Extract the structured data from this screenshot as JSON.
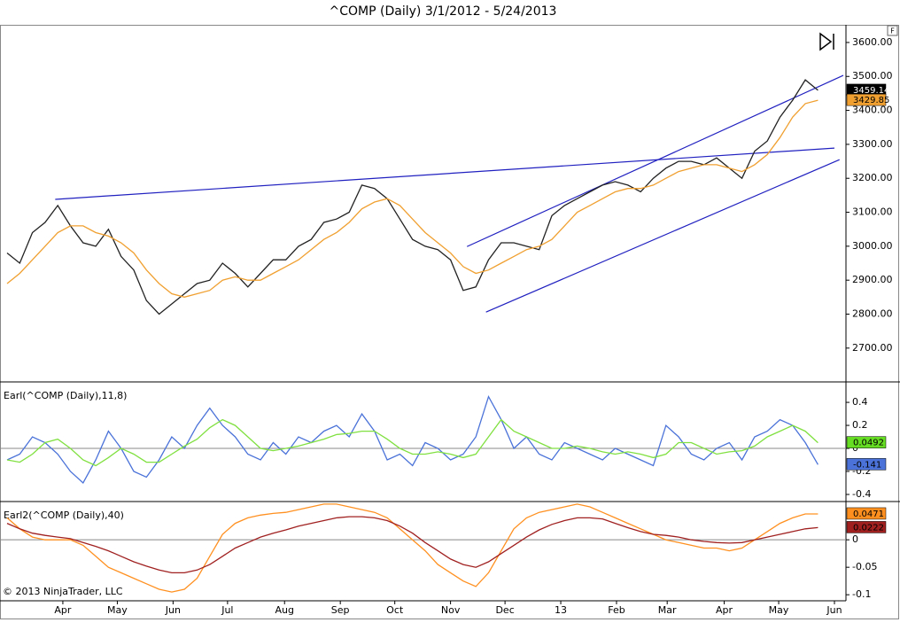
{
  "chart_data": [
    {
      "type": "line",
      "title": "^COMP (Daily)  3/1/2012 - 5/24/2013",
      "xlim": [
        0,
        66
      ],
      "ylim": [
        2603,
        3652
      ],
      "yticks": [
        {
          "value": 2700,
          "label": "2700.00"
        },
        {
          "value": 2800,
          "label": "2800.00"
        },
        {
          "value": 2900,
          "label": "2900.00"
        },
        {
          "value": 3000,
          "label": "3000.00"
        },
        {
          "value": 3100,
          "label": "3100.00"
        },
        {
          "value": 3200,
          "label": "3200.00"
        },
        {
          "value": 3300,
          "label": "3300.00"
        },
        {
          "value": 3400,
          "label": "3400.00"
        },
        {
          "value": 3500,
          "label": "3500.00"
        },
        {
          "value": 3600,
          "label": "3600.00"
        }
      ],
      "last_value_label": true,
      "series": [
        {
          "color": "#222222",
          "label_color": "#000000",
          "values": [
            2980,
            2950,
            3040,
            3070,
            3120,
            3060,
            3010,
            3000,
            3050,
            2970,
            2930,
            2840,
            2800,
            2830,
            2860,
            2890,
            2900,
            2950,
            2920,
            2880,
            2920,
            2960,
            2960,
            3000,
            3020,
            3070,
            3080,
            3100,
            3180,
            3170,
            3140,
            3080,
            3020,
            3000,
            2990,
            2960,
            2870,
            2880,
            2960,
            3010,
            3010,
            3000,
            2990,
            3090,
            3120,
            3140,
            3160,
            3180,
            3190,
            3180,
            3160,
            3200,
            3230,
            3250,
            3250,
            3240,
            3260,
            3230,
            3200,
            3280,
            3310,
            3380,
            3430,
            3490,
            3459.14
          ]
        },
        {
          "color": "#f0a030",
          "label_color": "#f0a030",
          "values": [
            2890,
            2920,
            2960,
            3000,
            3040,
            3060,
            3060,
            3040,
            3030,
            3010,
            2980,
            2930,
            2890,
            2860,
            2850,
            2860,
            2870,
            2900,
            2910,
            2900,
            2900,
            2920,
            2940,
            2960,
            2990,
            3020,
            3040,
            3070,
            3110,
            3130,
            3140,
            3120,
            3080,
            3040,
            3010,
            2980,
            2940,
            2920,
            2930,
            2950,
            2970,
            2990,
            3000,
            3020,
            3060,
            3100,
            3120,
            3140,
            3160,
            3170,
            3170,
            3180,
            3200,
            3220,
            3230,
            3240,
            3240,
            3230,
            3220,
            3240,
            3270,
            3320,
            3380,
            3420,
            3429.85
          ]
        }
      ],
      "trendlines": [
        {
          "color": "#2020c0",
          "x": [
            3.8,
            65.3
          ],
          "values": [
            3138,
            3289
          ]
        },
        {
          "color": "#2020c0",
          "x": [
            36.3,
            66
          ],
          "values": [
            2999,
            3503
          ]
        },
        {
          "color": "#2020c0",
          "x": [
            37.8,
            65.7
          ],
          "values": [
            2806,
            3255
          ]
        }
      ]
    },
    {
      "type": "line",
      "title": "Earl(^COMP (Daily),11,8)",
      "xlim": [
        0,
        66
      ],
      "ylim": [
        -0.454,
        0.57
      ],
      "yticks": [
        -0.4,
        -0.2,
        0,
        0.2,
        0.4
      ],
      "zero_line": true,
      "last_value_label": true,
      "series": [
        {
          "color": "#4a72d8",
          "label_color": "#4a72d8",
          "values": [
            -0.1,
            -0.05,
            0.1,
            0.05,
            -0.05,
            -0.2,
            -0.3,
            -0.1,
            0.15,
            0.0,
            -0.2,
            -0.25,
            -0.1,
            0.1,
            0.0,
            0.2,
            0.35,
            0.2,
            0.1,
            -0.05,
            -0.1,
            0.05,
            -0.05,
            0.1,
            0.05,
            0.15,
            0.2,
            0.1,
            0.3,
            0.15,
            -0.1,
            -0.05,
            -0.15,
            0.05,
            0.0,
            -0.1,
            -0.05,
            0.1,
            0.45,
            0.25,
            0.0,
            0.1,
            -0.05,
            -0.1,
            0.05,
            0.0,
            -0.05,
            -0.1,
            0.0,
            -0.05,
            -0.1,
            -0.15,
            0.2,
            0.1,
            -0.05,
            -0.1,
            0.0,
            0.05,
            -0.1,
            0.1,
            0.15,
            0.25,
            0.2,
            0.05,
            -0.141
          ]
        },
        {
          "color": "#80e040",
          "label_color": "#66dd22",
          "values": [
            -0.1,
            -0.12,
            -0.05,
            0.05,
            0.08,
            0.0,
            -0.1,
            -0.15,
            -0.08,
            0.0,
            -0.05,
            -0.12,
            -0.12,
            -0.05,
            0.02,
            0.08,
            0.18,
            0.25,
            0.2,
            0.1,
            0.0,
            -0.02,
            0.0,
            0.02,
            0.05,
            0.08,
            0.12,
            0.13,
            0.15,
            0.15,
            0.08,
            0.0,
            -0.05,
            -0.05,
            -0.03,
            -0.05,
            -0.08,
            -0.05,
            0.1,
            0.25,
            0.15,
            0.1,
            0.05,
            0.0,
            0.0,
            0.02,
            0.0,
            -0.03,
            -0.05,
            -0.03,
            -0.05,
            -0.08,
            -0.05,
            0.05,
            0.05,
            0.0,
            -0.05,
            -0.03,
            -0.02,
            0.02,
            0.1,
            0.15,
            0.2,
            0.15,
            0.0492
          ]
        }
      ]
    },
    {
      "type": "line",
      "title": "Earl2(^COMP (Daily),40)",
      "footnote": "© 2013 NinjaTrader, LLC",
      "xlim": [
        0,
        66
      ],
      "ylim": [
        -0.111,
        0.068
      ],
      "yticks": [
        -0.1,
        -0.05,
        0
      ],
      "zero_line": true,
      "last_value_label": true,
      "xticks": [
        {
          "value": 4.4,
          "label": "Apr"
        },
        {
          "value": 8.7,
          "label": "May"
        },
        {
          "value": 13.1,
          "label": "Jun"
        },
        {
          "value": 17.4,
          "label": "Jul"
        },
        {
          "value": 21.9,
          "label": "Aug"
        },
        {
          "value": 26.3,
          "label": "Sep"
        },
        {
          "value": 30.6,
          "label": "Oct"
        },
        {
          "value": 35.0,
          "label": "Nov"
        },
        {
          "value": 39.3,
          "label": "Dec"
        },
        {
          "value": 43.7,
          "label": "13"
        },
        {
          "value": 48.1,
          "label": "Feb"
        },
        {
          "value": 52.1,
          "label": "Mar"
        },
        {
          "value": 56.6,
          "label": "Apr"
        },
        {
          "value": 60.9,
          "label": "May"
        },
        {
          "value": 65.3,
          "label": "Jun"
        }
      ],
      "series": [
        {
          "color": "#ff9020",
          "label_color": "#ff9020",
          "values": [
            0.04,
            0.02,
            0.005,
            0.0,
            0.0,
            0.0,
            -0.01,
            -0.03,
            -0.05,
            -0.06,
            -0.07,
            -0.08,
            -0.09,
            -0.095,
            -0.09,
            -0.07,
            -0.03,
            0.01,
            0.03,
            0.04,
            0.045,
            0.048,
            0.05,
            0.055,
            0.06,
            0.065,
            0.065,
            0.06,
            0.055,
            0.05,
            0.04,
            0.02,
            0.0,
            -0.02,
            -0.045,
            -0.06,
            -0.075,
            -0.085,
            -0.06,
            -0.02,
            0.02,
            0.04,
            0.05,
            0.055,
            0.06,
            0.065,
            0.06,
            0.05,
            0.04,
            0.03,
            0.02,
            0.01,
            0.0,
            -0.005,
            -0.01,
            -0.015,
            -0.015,
            -0.02,
            -0.015,
            0.0,
            0.015,
            0.03,
            0.04,
            0.047,
            0.0471
          ]
        },
        {
          "color": "#a02020",
          "label_color": "#a02020",
          "values": [
            0.03,
            0.02,
            0.012,
            0.008,
            0.005,
            0.002,
            -0.005,
            -0.012,
            -0.02,
            -0.03,
            -0.04,
            -0.048,
            -0.055,
            -0.06,
            -0.06,
            -0.055,
            -0.045,
            -0.03,
            -0.015,
            -0.005,
            0.005,
            0.012,
            0.018,
            0.025,
            0.03,
            0.035,
            0.04,
            0.042,
            0.042,
            0.04,
            0.035,
            0.025,
            0.012,
            -0.005,
            -0.02,
            -0.035,
            -0.045,
            -0.05,
            -0.04,
            -0.025,
            -0.01,
            0.005,
            0.018,
            0.028,
            0.035,
            0.04,
            0.04,
            0.038,
            0.03,
            0.022,
            0.015,
            0.01,
            0.008,
            0.005,
            0.0,
            -0.003,
            -0.005,
            -0.006,
            -0.005,
            0.0,
            0.005,
            0.01,
            0.015,
            0.02,
            0.0222
          ]
        }
      ]
    }
  ],
  "button": "F"
}
